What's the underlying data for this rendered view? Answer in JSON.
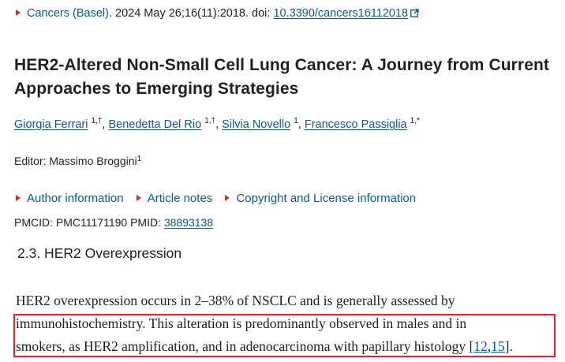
{
  "citation": {
    "journal": "Cancers (Basel)",
    "rest": ". 2024 May 26;16(11):2018. doi: ",
    "doi": "10.3390/cancers16112018"
  },
  "article": {
    "title": "HER2-Altered Non-Small Cell Lung Cancer: A Journey from Current Approaches to Emerging Strategies"
  },
  "authors": [
    {
      "name": "Giorgia Ferrari",
      "sup": "1,†"
    },
    {
      "name": "Benedetta Del Rio",
      "sup": "1,†"
    },
    {
      "name": "Silvia Novello",
      "sup": "1"
    },
    {
      "name": "Francesco Passiglia",
      "sup": "1,*"
    }
  ],
  "editor": {
    "label": "Editor: Massimo Broggini",
    "sup": "1"
  },
  "info_links": [
    "Author information",
    "Article notes",
    "Copyright and License information"
  ],
  "ids": {
    "pmcid": "PMCID: PMC11171190",
    "pmid_label": "PMID: ",
    "pmid": "38893138"
  },
  "section_heading": "2.3. HER2 Overexpression",
  "paragraph": {
    "line1": "HER2 overexpression occurs in 2–38% of NSCLC and is generally assessed by",
    "line2": "immunohistochemistry. This alteration is predominantly observed in males and in",
    "line3_pre": "smokers, as HER2 amplification, and in adenocarcinoma with papillary histology [",
    "ref1": "12",
    "ref_sep": ",",
    "ref2": "15",
    "line3_post": "]."
  },
  "colors": {
    "link": "#0a5a8c",
    "highlight": "#e02020",
    "bullet": "#c0342a"
  }
}
